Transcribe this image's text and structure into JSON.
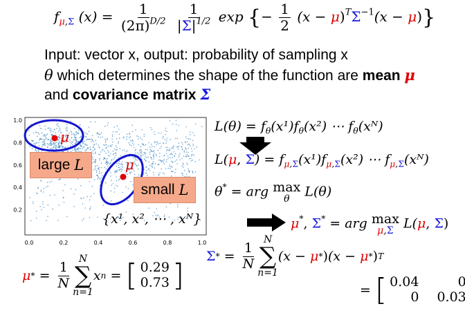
{
  "formula": {
    "lhs_f": "f",
    "lhs_mu": "μ",
    "lhs_comma": ",",
    "lhs_sigma": "Σ",
    "lhs_rest": "(x) =",
    "frac1_num": "1",
    "frac1_den": "(2π)",
    "frac1_den_exp": "D/2",
    "frac2_num": "1",
    "frac2_den_bar_open": "|",
    "frac2_den_sigma": "Σ",
    "frac2_den_bar_close": "|",
    "frac2_den_exp": "1/2",
    "exp_word": "exp",
    "brace_open": "{",
    "minus": "−",
    "frac3_num": "1",
    "frac3_den": "2",
    "term_open": "(x −",
    "term_mu": "μ",
    "term_close": ")",
    "term_T": "T",
    "term_sigma": "Σ",
    "term_inv": "−1",
    "term2_open": "(x −",
    "term2_mu": "μ",
    "term2_close": ")",
    "brace_close": "}"
  },
  "text": {
    "line1": "Input: vector x, output: probability of sampling x",
    "line2_theta": "θ",
    "line2_mid": " which determines the shape of the function are ",
    "line2_mean_word": "mean",
    "line2_mean_sym": "μ",
    "line3_and": "and ",
    "line3_cov_word": "covariance matrix",
    "line3_cov_sym": "Σ"
  },
  "scatter": {
    "x_ticks": [
      "0.0",
      "0.2",
      "0.4",
      "0.6",
      "0.8",
      "1.0"
    ],
    "y_ticks": [
      "0.2",
      "0.4",
      "0.6",
      "0.8",
      "1.0"
    ],
    "point_color": "#2f7fbf",
    "ellipse_color": "#1414d0",
    "large_mu_label": "μ",
    "small_mu_label": "μ",
    "dataset_label": "{x¹, x², ⋯ , xᴺ}"
  },
  "labels": {
    "large_word": "large",
    "large_L": "L",
    "small_word": "small",
    "small_L": "L"
  },
  "likelihood": {
    "eq1": "L(θ) = f",
    "eq1_sub": "θ",
    "eq1_b": "(x¹)f",
    "eq1_sub2": "θ",
    "eq1_c": "(x²) ⋯ f",
    "eq1_sub3": "θ",
    "eq1_d": "(xᴺ)",
    "eq2_L": "L(",
    "eq2_mu": "μ",
    "eq2_comma": ", ",
    "eq2_sigma": "Σ",
    "eq2_close": ") = f",
    "eq2_a": "(x¹)f",
    "eq2_b": "(x²) ⋯ f",
    "eq2_c": "(xᴺ)",
    "sub_mu": "μ",
    "sub_comma": ",",
    "sub_sigma": "Σ",
    "eq3_lhs": "θ* = arg max L(θ)",
    "eq3_a": "θ",
    "eq3_star": "*",
    "eq3_eq": " = arg ",
    "eq3_max": "max",
    "eq3_under": "θ",
    "eq3_rest": " L(θ)",
    "eq4_mu": "μ",
    "eq4_star1": "*",
    "eq4_comma": ", ",
    "eq4_sigma": "Σ",
    "eq4_star2": "*",
    "eq4_eq": " = arg ",
    "eq4_max": "max",
    "eq4_under_mu": "μ",
    "eq4_under_comma": ",",
    "eq4_under_sigma": "Σ",
    "eq4_L": " L(",
    "eq4_mu2": "μ",
    "eq4_comma2": ", ",
    "eq4_sigma2": "Σ",
    "eq4_close": ")"
  },
  "mean_result": {
    "mu": "μ",
    "star": "*",
    "eq": " = ",
    "frac_num": "1",
    "frac_den": "N",
    "sum_top": "N",
    "sum_sym": "∑",
    "sum_bottom": "n=1",
    "x": "x",
    "x_exp": "n",
    "eq2": " = ",
    "v1": "0.29",
    "v2": "0.73"
  },
  "cov_result": {
    "sigma": "Σ",
    "star": "*",
    "eq": " = ",
    "frac_num": "1",
    "frac_den": "N",
    "sum_top": "N",
    "sum_sym": "∑",
    "sum_bottom": "n=1",
    "t1_open": "(x − ",
    "t1_mu": "μ",
    "t1_star": "*",
    "t1_close": ")",
    "t2_open": "(x − ",
    "t2_mu": "μ",
    "t2_star": "*",
    "t2_close": ")",
    "t2_T": "T",
    "eq2": "= ",
    "m11": "0.04",
    "m12": "0",
    "m21": "0",
    "m22": "0.03"
  }
}
